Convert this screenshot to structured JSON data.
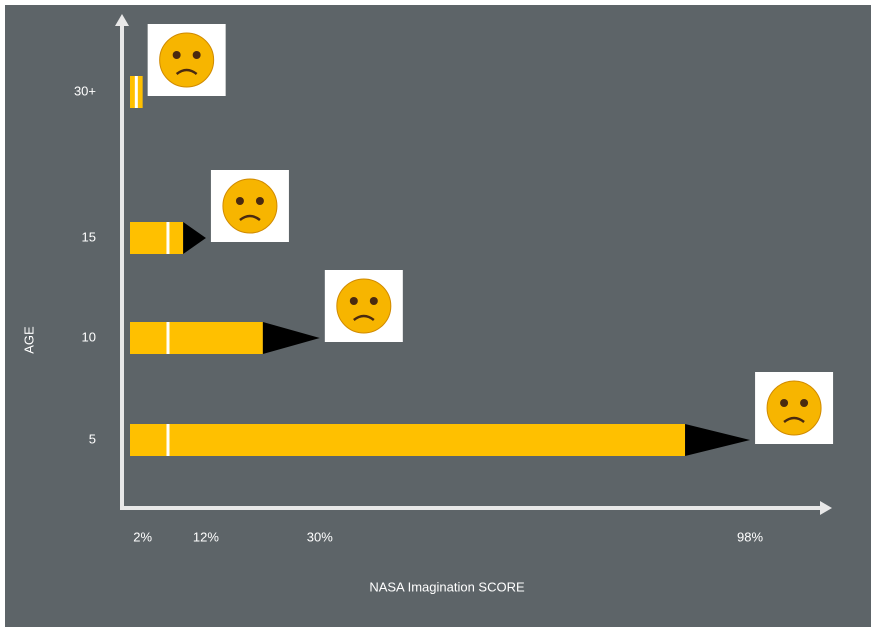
{
  "chart_data": {
    "type": "bar",
    "orientation": "horizontal",
    "categories": [
      "30+",
      "15",
      "10",
      "5"
    ],
    "values": [
      2,
      12,
      30,
      98
    ],
    "value_labels": [
      "2%",
      "12%",
      "30%",
      "98%"
    ],
    "color": "#ffc000",
    "xlim": [
      0,
      110
    ],
    "x_label": "NASA Imagination SCORE",
    "y_label": "AGE"
  }
}
